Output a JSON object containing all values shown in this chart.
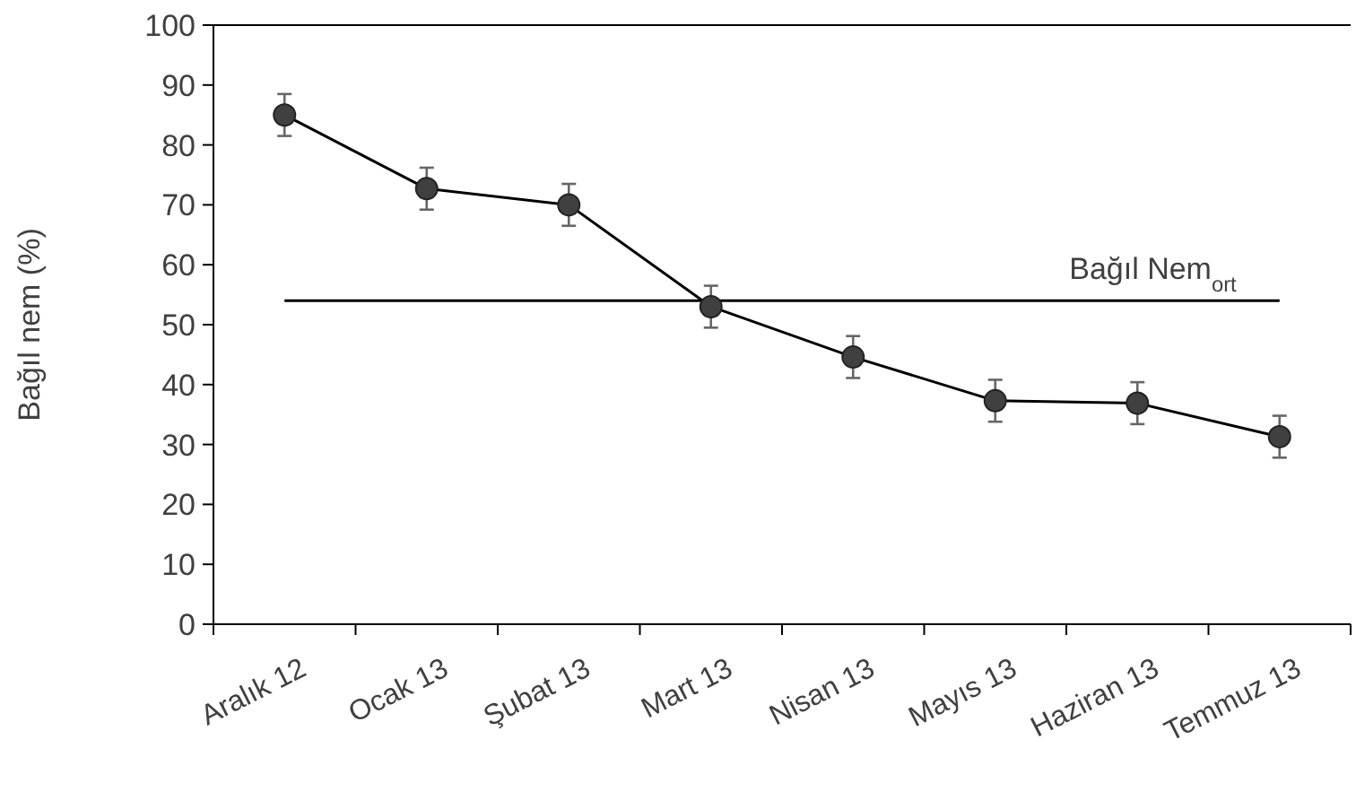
{
  "chart_data": {
    "type": "line",
    "ylabel": "Bağıl nem (%)",
    "categories": [
      "Aralık 12",
      "Ocak 13",
      "Şubat 13",
      "Mart 13",
      "Nisan 13",
      "Mayıs 13",
      "Haziran 13",
      "Temmuz 13"
    ],
    "series": [
      {
        "color": "#404040",
        "values": [
          85,
          72.7,
          70,
          53,
          44.6,
          37.3,
          36.9,
          31.3
        ],
        "errors": [
          3.5,
          3.5,
          3.5,
          3.5,
          3.5,
          3.5,
          3.5,
          3.5
        ]
      }
    ],
    "ylim": [
      0,
      100
    ],
    "yticks": [
      0,
      10,
      20,
      30,
      40,
      50,
      60,
      70,
      80,
      90,
      100
    ],
    "ref_lines": [
      {
        "axis": "y",
        "value": 54,
        "label": "Bağıl Nem$_{ort}$",
        "color": "#000000"
      }
    ],
    "marker": "circle",
    "line_style": "solid",
    "grid": false
  }
}
